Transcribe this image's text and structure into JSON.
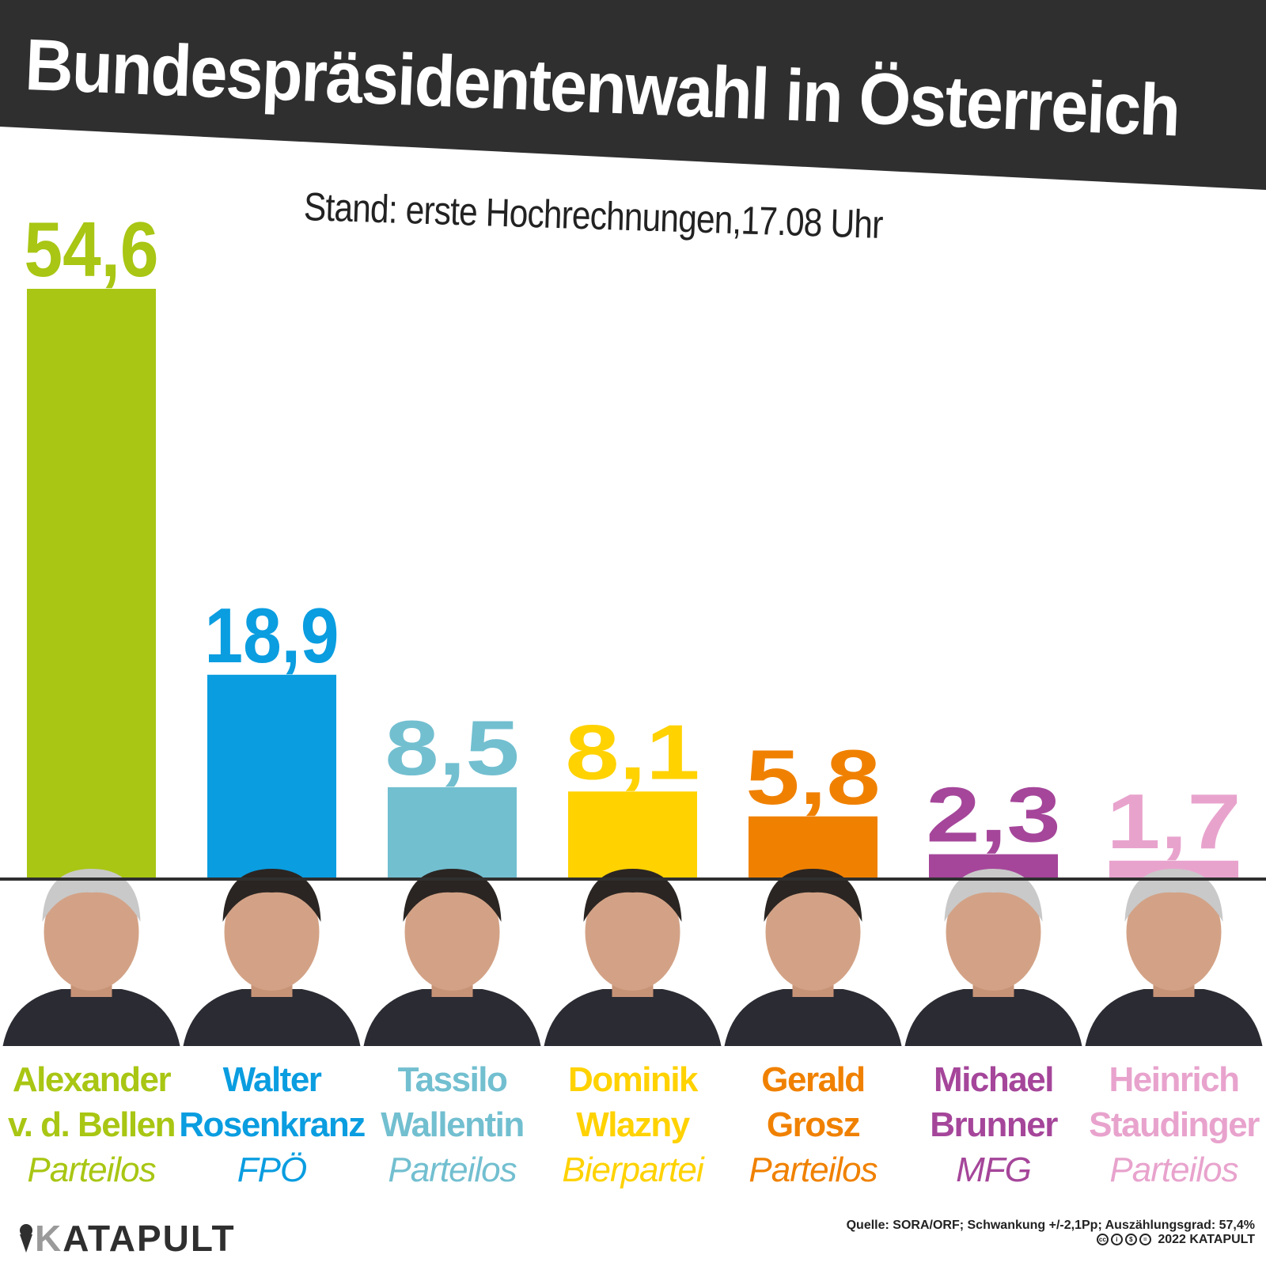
{
  "title": "Bundespräsidentenwahl in Österreich",
  "subtitle": "Stand: erste Hochrechnungen,17.08 Uhr",
  "chart_data": {
    "type": "bar",
    "categories": [
      "Alexander v. d. Bellen",
      "Walter Rosenkranz",
      "Tassilo Wallentin",
      "Dominik Wlazny",
      "Gerald Grosz",
      "Michael Brunner",
      "Heinrich Staudinger"
    ],
    "values": [
      54.6,
      18.9,
      8.5,
      8.1,
      5.8,
      2.3,
      1.7
    ],
    "value_labels": [
      "54,6",
      "18,9",
      "8,5",
      "8,1",
      "5,8",
      "2,3",
      "1,7"
    ],
    "name_lines": [
      [
        "Alexander",
        "v. d. Bellen"
      ],
      [
        "Walter",
        "Rosenkranz"
      ],
      [
        "Tassilo",
        "Wallentin"
      ],
      [
        "Dominik",
        "Wlazny"
      ],
      [
        "Gerald",
        "Grosz"
      ],
      [
        "Michael",
        "Brunner"
      ],
      [
        "Heinrich",
        "Staudinger"
      ]
    ],
    "parties": [
      "Parteilos",
      "FPÖ",
      "Parteilos",
      "Bierpartei",
      "Parteilos",
      "MFG",
      "Parteilos"
    ],
    "colors": [
      "#a8c613",
      "#0a9de0",
      "#72bfd0",
      "#ffd200",
      "#f08100",
      "#a5469a",
      "#e8a3cd"
    ],
    "ylim": [
      0,
      54.6
    ],
    "grid": false
  },
  "logo": {
    "initial": "K",
    "rest": "ATAPULT"
  },
  "source": "Quelle: SORA/ORF; Schwankung +/-2,1Pp; Auszählungsgrad: 57,4%",
  "copyright": "2022 KATAPULT"
}
